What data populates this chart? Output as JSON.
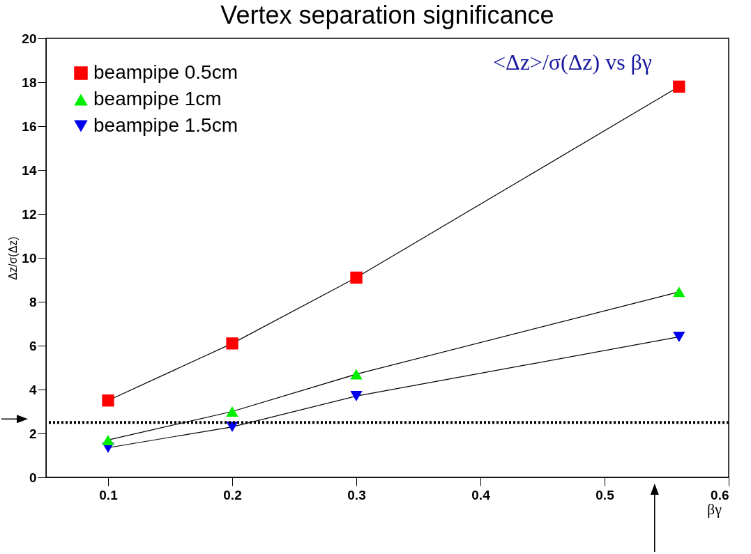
{
  "chart_data": {
    "type": "line",
    "title": "Vertex separation significance",
    "xlabel": "βγ",
    "ylabel": "Δz/σ(Δz)",
    "annotations": [
      "<Δz>/σ(Δz) vs βγ"
    ],
    "x": [
      0.1,
      0.2,
      0.3,
      0.56
    ],
    "series": [
      {
        "name": "beampipe 0.5cm",
        "color": "#ff0000",
        "marker": "square",
        "values": [
          3.5,
          6.1,
          9.1,
          17.8
        ]
      },
      {
        "name": "beampipe 1cm",
        "color": "#00ee00",
        "marker": "triangle",
        "values": [
          1.7,
          3.0,
          4.7,
          8.45
        ]
      },
      {
        "name": "beampipe 1.5cm",
        "color": "#0000ee",
        "marker": "triangle-down",
        "values": [
          1.35,
          2.3,
          3.7,
          6.4
        ]
      }
    ],
    "xlim": [
      0.05,
      0.6
    ],
    "xticks": [
      0.1,
      0.2,
      0.3,
      0.4,
      0.5,
      0.6
    ],
    "ylim": [
      0,
      20
    ],
    "yticks": [
      0,
      2,
      4,
      6,
      8,
      10,
      12,
      14,
      16,
      18,
      20
    ],
    "ref_lines": [
      {
        "axis": "y",
        "value": 2.5,
        "line_style": "dotted",
        "color": "#000000"
      }
    ],
    "grid": false,
    "legend": "top left"
  }
}
